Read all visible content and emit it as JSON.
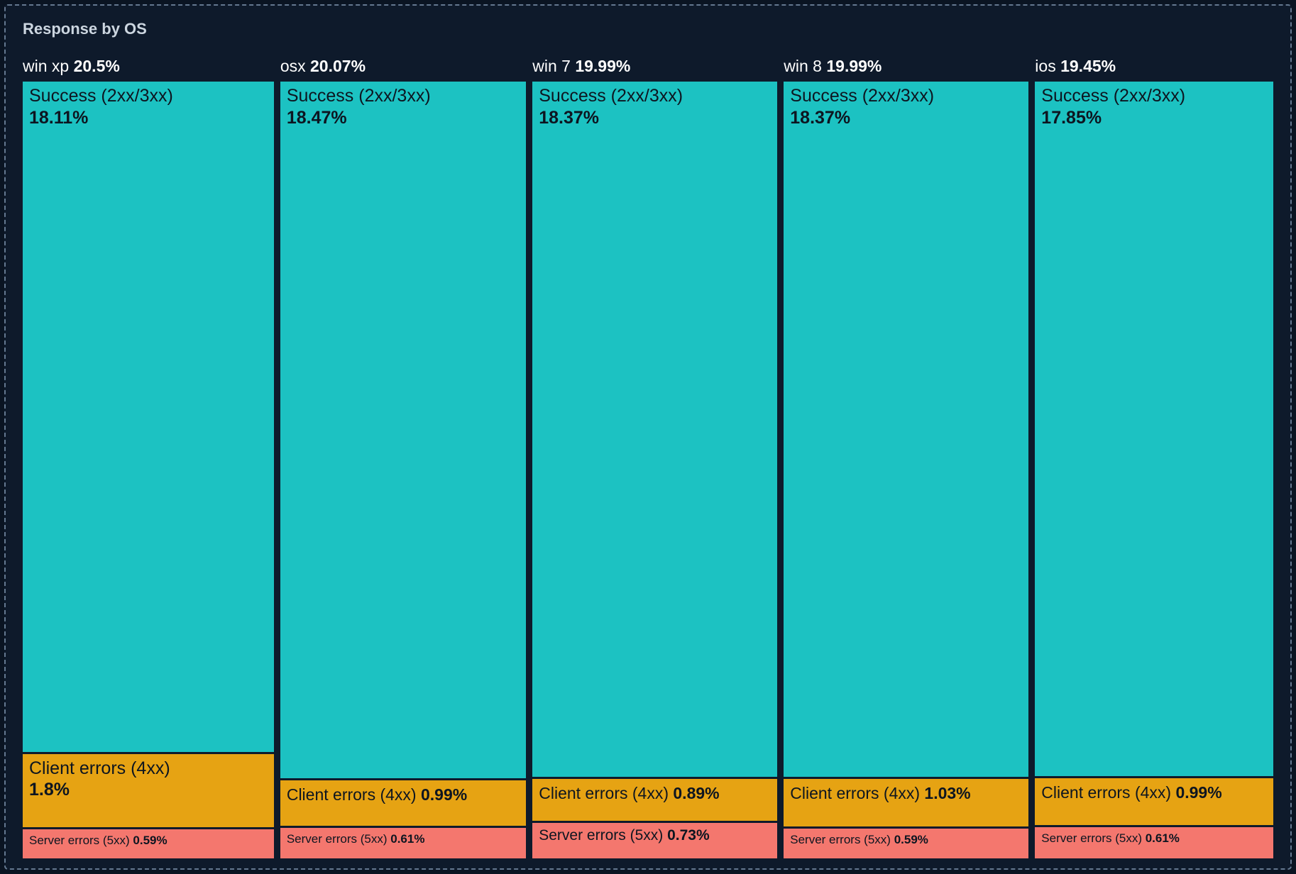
{
  "panel": {
    "title": "Response by OS"
  },
  "chart_data": {
    "type": "treemap",
    "title": "Response by OS",
    "unit": "%",
    "legend_position": "none",
    "grid": false,
    "colors": {
      "success": "#1cc2c2",
      "client": "#e6a313",
      "server": "#f4776e"
    },
    "background": "#0e1a2b",
    "columns": [
      {
        "name": "win xp",
        "total": 20.5,
        "total_label": "20.5%",
        "segments": [
          {
            "key": "success",
            "label": "Success (2xx/3xx)",
            "value": 18.11,
            "value_label": "18.11%",
            "two_line": true
          },
          {
            "key": "client",
            "label": "Client errors (4xx)",
            "value": 1.8,
            "value_label": "1.8%",
            "two_line": true
          },
          {
            "key": "server",
            "label": "Server errors (5xx)",
            "value": 0.59,
            "value_label": "0.59%",
            "two_line": false
          }
        ]
      },
      {
        "name": "osx",
        "total": 20.07,
        "total_label": "20.07%",
        "segments": [
          {
            "key": "success",
            "label": "Success (2xx/3xx)",
            "value": 18.47,
            "value_label": "18.47%",
            "two_line": true
          },
          {
            "key": "client",
            "label": "Client errors (4xx)",
            "value": 0.99,
            "value_label": "0.99%",
            "two_line": false
          },
          {
            "key": "server",
            "label": "Server errors (5xx)",
            "value": 0.61,
            "value_label": "0.61%",
            "two_line": false
          }
        ]
      },
      {
        "name": "win 7",
        "total": 19.99,
        "total_label": "19.99%",
        "segments": [
          {
            "key": "success",
            "label": "Success (2xx/3xx)",
            "value": 18.37,
            "value_label": "18.37%",
            "two_line": true
          },
          {
            "key": "client",
            "label": "Client errors (4xx)",
            "value": 0.89,
            "value_label": "0.89%",
            "two_line": false
          },
          {
            "key": "server",
            "label": "Server errors (5xx)",
            "value": 0.73,
            "value_label": "0.73%",
            "two_line": false
          }
        ]
      },
      {
        "name": "win 8",
        "total": 19.99,
        "total_label": "19.99%",
        "segments": [
          {
            "key": "success",
            "label": "Success (2xx/3xx)",
            "value": 18.37,
            "value_label": "18.37%",
            "two_line": true
          },
          {
            "key": "client",
            "label": "Client errors (4xx)",
            "value": 1.03,
            "value_label": "1.03%",
            "two_line": false
          },
          {
            "key": "server",
            "label": "Server errors (5xx)",
            "value": 0.59,
            "value_label": "0.59%",
            "two_line": false
          }
        ]
      },
      {
        "name": "ios",
        "total": 19.45,
        "total_label": "19.45%",
        "segments": [
          {
            "key": "success",
            "label": "Success (2xx/3xx)",
            "value": 17.85,
            "value_label": "17.85%",
            "two_line": true
          },
          {
            "key": "client",
            "label": "Client errors (4xx)",
            "value": 0.99,
            "value_label": "0.99%",
            "two_line": false
          },
          {
            "key": "server",
            "label": "Server errors (5xx)",
            "value": 0.61,
            "value_label": "0.61%",
            "two_line": false
          }
        ]
      }
    ]
  }
}
